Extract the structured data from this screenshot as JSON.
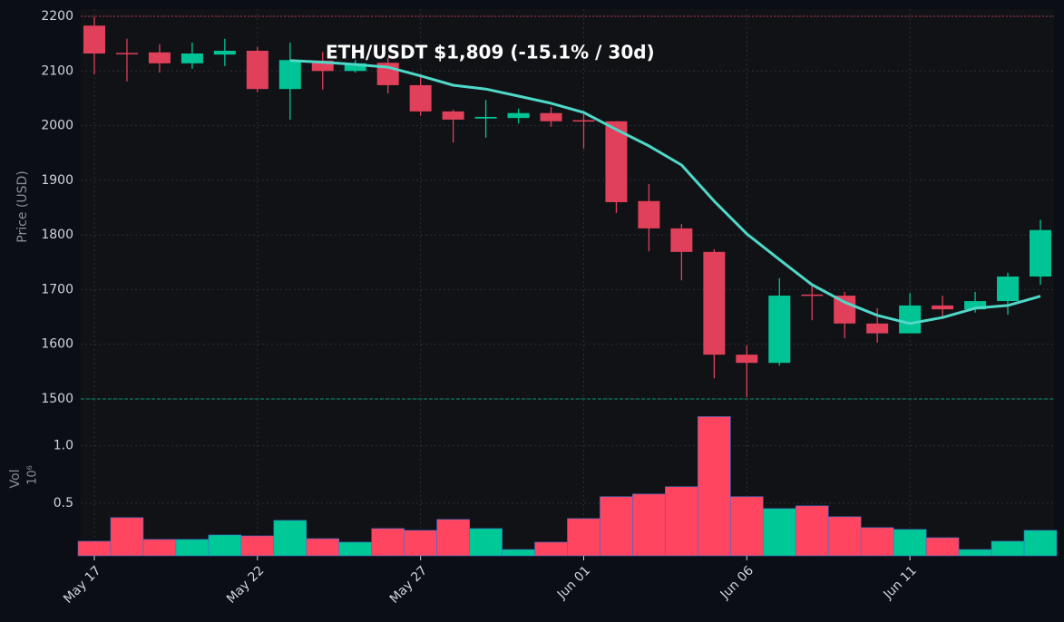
{
  "chart_data": {
    "type": "candlestick",
    "title": "ETH/USDT   $1,809   (-15.1% / 30d)",
    "ylabel": "Price (USD)",
    "categories": [
      "May 17",
      null,
      null,
      null,
      null,
      "May 22",
      null,
      null,
      null,
      null,
      "May 27",
      null,
      null,
      null,
      null,
      "Jun 01",
      null,
      null,
      null,
      null,
      "Jun 06",
      null,
      null,
      null,
      null,
      "Jun 11",
      null,
      null,
      null,
      null
    ],
    "ylim": [
      1500,
      2200
    ],
    "yticks": [
      1500,
      1600,
      1700,
      1800,
      1900,
      2000,
      2100,
      2200
    ],
    "grid": true,
    "up_color": "#00c495",
    "down_color": "#e0405a",
    "open": [
      2183,
      2133,
      2134,
      2114,
      2130,
      2137,
      2067,
      2119,
      2100,
      2115,
      2074,
      2026,
      2013,
      2014,
      2023,
      2010,
      2008,
      1862,
      1812,
      1769,
      1581,
      1566,
      1691,
      1689,
      1638,
      1620,
      1671,
      1664,
      1679,
      1724
    ],
    "high": [
      2199,
      2159,
      2149,
      2152,
      2159,
      2144,
      2152,
      2135,
      2120,
      2124,
      2094,
      2029,
      2047,
      2031,
      2034,
      2021,
      2008,
      1893,
      1820,
      1774,
      1598,
      1721,
      1706,
      1696,
      1666,
      1694,
      1689,
      1696,
      1731,
      1828
    ],
    "low": [
      2094,
      2081,
      2097,
      2104,
      2109,
      2061,
      2011,
      2066,
      2097,
      2059,
      2018,
      1969,
      1978,
      2004,
      1998,
      1958,
      1840,
      1770,
      1717,
      1538,
      1503,
      1561,
      1644,
      1611,
      1603,
      1620,
      1651,
      1658,
      1654,
      1709
    ],
    "close": [
      2132,
      2132,
      2114,
      2132,
      2137,
      2067,
      2120,
      2100,
      2114,
      2074,
      2026,
      2011,
      2016,
      2023,
      2008,
      2009,
      1860,
      1812,
      1769,
      1581,
      1566,
      1689,
      1689,
      1638,
      1620,
      1671,
      1664,
      1679,
      1724,
      1809
    ],
    "ma": {
      "color": "#4fd8c8",
      "values": [
        null,
        null,
        null,
        null,
        null,
        null,
        2119,
        2116,
        2112,
        2107,
        2091,
        2074,
        2067,
        2054,
        2041,
        2024,
        1993,
        1963,
        1928,
        1862,
        1802,
        1755,
        1709,
        1677,
        1653,
        1638,
        1649,
        1666,
        1671,
        1688
      ]
    },
    "volume": {
      "ylabel": "Vol",
      "offset_label": "10⁶",
      "ylim": [
        0.04,
        1.4
      ],
      "yticks": [
        0.5,
        {
          "value": 1.0,
          "label": "1.0"
        }
      ],
      "up_color": "#00c896",
      "down_color": "#ff4560",
      "values": [
        0.167,
        0.373,
        0.183,
        0.183,
        0.222,
        0.214,
        0.349,
        0.19,
        0.159,
        0.278,
        0.262,
        0.357,
        0.278,
        0.095,
        0.159,
        0.365,
        0.556,
        0.579,
        0.643,
        1.254,
        0.556,
        0.452,
        0.476,
        0.381,
        0.286,
        0.27,
        0.198,
        0.095,
        0.167,
        0.262
      ]
    }
  }
}
